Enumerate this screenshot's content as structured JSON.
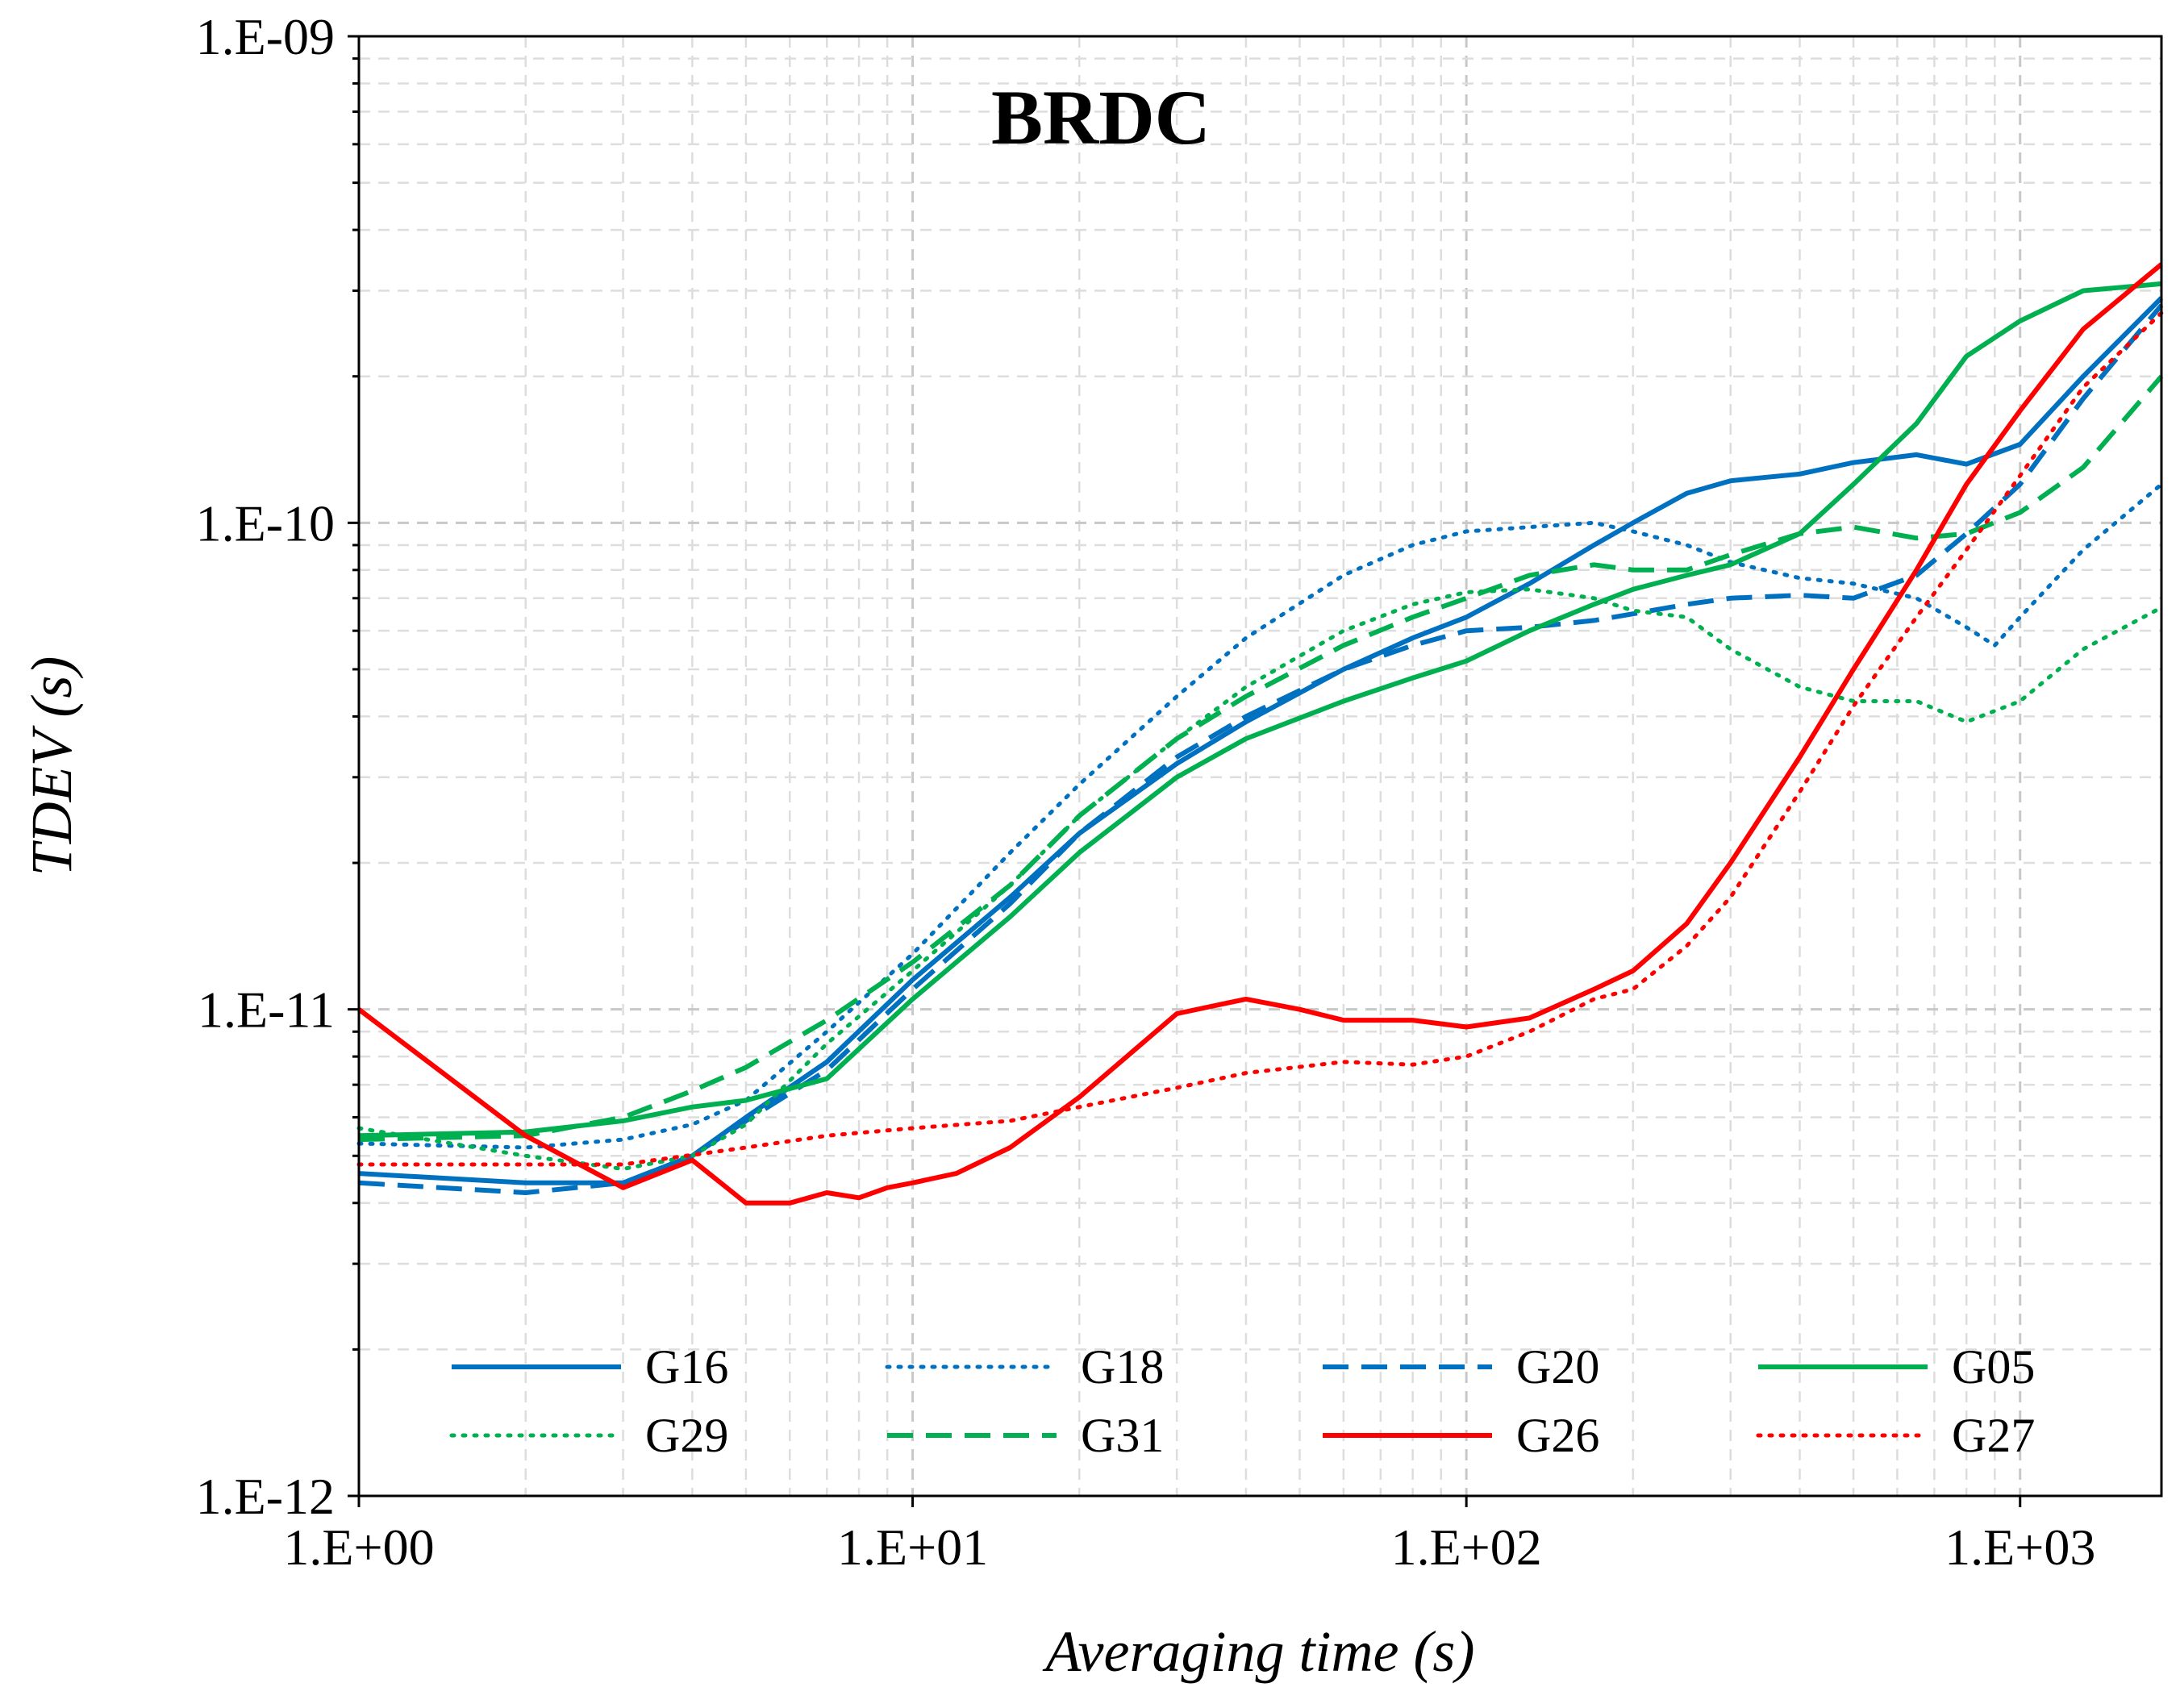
{
  "chart_data": {
    "type": "line",
    "title": "BRDC",
    "xlabel": "Averaging time (s)",
    "ylabel": "TDEV (s)",
    "xscale": "log",
    "yscale": "log",
    "xlim": [
      1,
      1800
    ],
    "ylim": [
      1e-12,
      1e-09
    ],
    "grid": true,
    "legend_position": "bottom",
    "xticks": [
      {
        "value": 1,
        "label": "1.E+00"
      },
      {
        "value": 10,
        "label": "1.E+01"
      },
      {
        "value": 100,
        "label": "1.E+02"
      },
      {
        "value": 1000,
        "label": "1.E+03"
      }
    ],
    "yticks": [
      {
        "value": 1e-12,
        "label": "1.E-12"
      },
      {
        "value": 1e-11,
        "label": "1.E-11"
      },
      {
        "value": 1e-10,
        "label": "1.E-10"
      },
      {
        "value": 1e-09,
        "label": "1.E-09"
      }
    ],
    "series": [
      {
        "name": "G16",
        "color": "#0070C0",
        "dash": "solid",
        "points": [
          [
            1,
            4.6e-12
          ],
          [
            2,
            4.4e-12
          ],
          [
            3,
            4.4e-12
          ],
          [
            4,
            5e-12
          ],
          [
            5,
            6e-12
          ],
          [
            7,
            7.8e-12
          ],
          [
            10,
            1.15e-11
          ],
          [
            15,
            1.7e-11
          ],
          [
            20,
            2.3e-11
          ],
          [
            30,
            3.2e-11
          ],
          [
            40,
            3.9e-11
          ],
          [
            60,
            5e-11
          ],
          [
            80,
            5.8e-11
          ],
          [
            100,
            6.4e-11
          ],
          [
            130,
            7.5e-11
          ],
          [
            170,
            9e-11
          ],
          [
            200,
            1e-10
          ],
          [
            250,
            1.15e-10
          ],
          [
            300,
            1.22e-10
          ],
          [
            400,
            1.26e-10
          ],
          [
            500,
            1.33e-10
          ],
          [
            650,
            1.38e-10
          ],
          [
            800,
            1.32e-10
          ],
          [
            1000,
            1.45e-10
          ],
          [
            1300,
            2e-10
          ],
          [
            1800,
            2.9e-10
          ]
        ]
      },
      {
        "name": "G18",
        "color": "#0070C0",
        "dash": "dotted",
        "points": [
          [
            1,
            5.3e-12
          ],
          [
            2,
            5.2e-12
          ],
          [
            3,
            5.4e-12
          ],
          [
            4,
            5.8e-12
          ],
          [
            5,
            6.5e-12
          ],
          [
            7,
            9e-12
          ],
          [
            10,
            1.3e-11
          ],
          [
            15,
            2.1e-11
          ],
          [
            20,
            2.9e-11
          ],
          [
            30,
            4.4e-11
          ],
          [
            40,
            5.8e-11
          ],
          [
            60,
            7.8e-11
          ],
          [
            80,
            9e-11
          ],
          [
            100,
            9.6e-11
          ],
          [
            130,
            9.8e-11
          ],
          [
            170,
            1e-10
          ],
          [
            200,
            9.6e-11
          ],
          [
            250,
            9e-11
          ],
          [
            300,
            8.3e-11
          ],
          [
            400,
            7.7e-11
          ],
          [
            500,
            7.5e-11
          ],
          [
            650,
            7e-11
          ],
          [
            800,
            6.1e-11
          ],
          [
            900,
            5.6e-11
          ],
          [
            1000,
            6.4e-11
          ],
          [
            1300,
            8.8e-11
          ],
          [
            1800,
            1.2e-10
          ]
        ]
      },
      {
        "name": "G20",
        "color": "#0070C0",
        "dash": "dashed",
        "points": [
          [
            1,
            4.4e-12
          ],
          [
            2,
            4.2e-12
          ],
          [
            3,
            4.4e-12
          ],
          [
            4,
            5e-12
          ],
          [
            5,
            5.9e-12
          ],
          [
            7,
            7.5e-12
          ],
          [
            10,
            1.1e-11
          ],
          [
            15,
            1.65e-11
          ],
          [
            20,
            2.3e-11
          ],
          [
            30,
            3.3e-11
          ],
          [
            40,
            4e-11
          ],
          [
            60,
            5e-11
          ],
          [
            80,
            5.6e-11
          ],
          [
            100,
            6e-11
          ],
          [
            130,
            6.1e-11
          ],
          [
            170,
            6.3e-11
          ],
          [
            200,
            6.5e-11
          ],
          [
            250,
            6.8e-11
          ],
          [
            300,
            7e-11
          ],
          [
            400,
            7.1e-11
          ],
          [
            500,
            7e-11
          ],
          [
            650,
            7.8e-11
          ],
          [
            800,
            9.5e-11
          ],
          [
            1000,
            1.2e-10
          ],
          [
            1300,
            1.8e-10
          ],
          [
            1800,
            2.8e-10
          ]
        ]
      },
      {
        "name": "G05",
        "color": "#00B050",
        "dash": "solid",
        "points": [
          [
            1,
            5.5e-12
          ],
          [
            2,
            5.6e-12
          ],
          [
            3,
            5.9e-12
          ],
          [
            4,
            6.3e-12
          ],
          [
            5,
            6.5e-12
          ],
          [
            7,
            7.2e-12
          ],
          [
            10,
            1.05e-11
          ],
          [
            15,
            1.55e-11
          ],
          [
            20,
            2.1e-11
          ],
          [
            30,
            3e-11
          ],
          [
            40,
            3.6e-11
          ],
          [
            60,
            4.3e-11
          ],
          [
            80,
            4.8e-11
          ],
          [
            100,
            5.2e-11
          ],
          [
            130,
            6e-11
          ],
          [
            170,
            6.8e-11
          ],
          [
            200,
            7.3e-11
          ],
          [
            250,
            7.8e-11
          ],
          [
            300,
            8.2e-11
          ],
          [
            400,
            9.5e-11
          ],
          [
            500,
            1.2e-10
          ],
          [
            650,
            1.6e-10
          ],
          [
            800,
            2.2e-10
          ],
          [
            1000,
            2.6e-10
          ],
          [
            1300,
            3e-10
          ],
          [
            1800,
            3.1e-10
          ]
        ]
      },
      {
        "name": "G29",
        "color": "#00B050",
        "dash": "dotted",
        "points": [
          [
            1,
            5.7e-12
          ],
          [
            2,
            5e-12
          ],
          [
            3,
            4.7e-12
          ],
          [
            4,
            5e-12
          ],
          [
            5,
            5.8e-12
          ],
          [
            7,
            8.5e-12
          ],
          [
            10,
            1.2e-11
          ],
          [
            15,
            1.8e-11
          ],
          [
            20,
            2.5e-11
          ],
          [
            30,
            3.6e-11
          ],
          [
            40,
            4.6e-11
          ],
          [
            60,
            6e-11
          ],
          [
            80,
            6.8e-11
          ],
          [
            100,
            7.2e-11
          ],
          [
            130,
            7.3e-11
          ],
          [
            170,
            7e-11
          ],
          [
            200,
            6.6e-11
          ],
          [
            250,
            6.4e-11
          ],
          [
            300,
            5.5e-11
          ],
          [
            400,
            4.6e-11
          ],
          [
            500,
            4.3e-11
          ],
          [
            650,
            4.3e-11
          ],
          [
            800,
            3.9e-11
          ],
          [
            1000,
            4.3e-11
          ],
          [
            1300,
            5.5e-11
          ],
          [
            1800,
            6.7e-11
          ]
        ]
      },
      {
        "name": "G31",
        "color": "#00B050",
        "dash": "dashed",
        "points": [
          [
            1,
            5.4e-12
          ],
          [
            2,
            5.5e-12
          ],
          [
            3,
            6e-12
          ],
          [
            4,
            6.8e-12
          ],
          [
            5,
            7.6e-12
          ],
          [
            7,
            9.5e-12
          ],
          [
            10,
            1.25e-11
          ],
          [
            15,
            1.8e-11
          ],
          [
            20,
            2.5e-11
          ],
          [
            30,
            3.6e-11
          ],
          [
            40,
            4.4e-11
          ],
          [
            60,
            5.6e-11
          ],
          [
            80,
            6.4e-11
          ],
          [
            100,
            7e-11
          ],
          [
            130,
            7.8e-11
          ],
          [
            170,
            8.2e-11
          ],
          [
            200,
            8e-11
          ],
          [
            250,
            8e-11
          ],
          [
            300,
            8.6e-11
          ],
          [
            400,
            9.5e-11
          ],
          [
            500,
            9.8e-11
          ],
          [
            650,
            9.3e-11
          ],
          [
            800,
            9.5e-11
          ],
          [
            1000,
            1.05e-10
          ],
          [
            1300,
            1.3e-10
          ],
          [
            1800,
            2e-10
          ]
        ]
      },
      {
        "name": "G26",
        "color": "#FF0000",
        "dash": "solid",
        "points": [
          [
            1,
            1e-11
          ],
          [
            2,
            5.5e-12
          ],
          [
            3,
            4.3e-12
          ],
          [
            4,
            4.9e-12
          ],
          [
            5,
            4e-12
          ],
          [
            6,
            4e-12
          ],
          [
            7,
            4.2e-12
          ],
          [
            8,
            4.1e-12
          ],
          [
            9,
            4.3e-12
          ],
          [
            10,
            4.4e-12
          ],
          [
            12,
            4.6e-12
          ],
          [
            15,
            5.2e-12
          ],
          [
            20,
            6.6e-12
          ],
          [
            30,
            9.8e-12
          ],
          [
            40,
            1.05e-11
          ],
          [
            50,
            1e-11
          ],
          [
            60,
            9.5e-12
          ],
          [
            80,
            9.5e-12
          ],
          [
            100,
            9.2e-12
          ],
          [
            130,
            9.6e-12
          ],
          [
            170,
            1.1e-11
          ],
          [
            200,
            1.2e-11
          ],
          [
            250,
            1.5e-11
          ],
          [
            300,
            2e-11
          ],
          [
            400,
            3.3e-11
          ],
          [
            500,
            5e-11
          ],
          [
            650,
            8e-11
          ],
          [
            800,
            1.2e-10
          ],
          [
            1000,
            1.7e-10
          ],
          [
            1300,
            2.5e-10
          ],
          [
            1800,
            3.4e-10
          ]
        ]
      },
      {
        "name": "G27",
        "color": "#FF0000",
        "dash": "dotted",
        "points": [
          [
            1,
            4.8e-12
          ],
          [
            2,
            4.8e-12
          ],
          [
            3,
            4.8e-12
          ],
          [
            5,
            5.2e-12
          ],
          [
            7,
            5.5e-12
          ],
          [
            10,
            5.7e-12
          ],
          [
            15,
            5.9e-12
          ],
          [
            20,
            6.3e-12
          ],
          [
            30,
            6.9e-12
          ],
          [
            40,
            7.4e-12
          ],
          [
            60,
            7.8e-12
          ],
          [
            80,
            7.7e-12
          ],
          [
            100,
            8e-12
          ],
          [
            130,
            9e-12
          ],
          [
            170,
            1.05e-11
          ],
          [
            200,
            1.1e-11
          ],
          [
            250,
            1.35e-11
          ],
          [
            300,
            1.7e-11
          ],
          [
            400,
            2.8e-11
          ],
          [
            500,
            4.2e-11
          ],
          [
            650,
            6.4e-11
          ],
          [
            800,
            8.8e-11
          ],
          [
            1000,
            1.25e-10
          ],
          [
            1300,
            1.9e-10
          ],
          [
            1800,
            2.7e-10
          ]
        ]
      }
    ]
  }
}
